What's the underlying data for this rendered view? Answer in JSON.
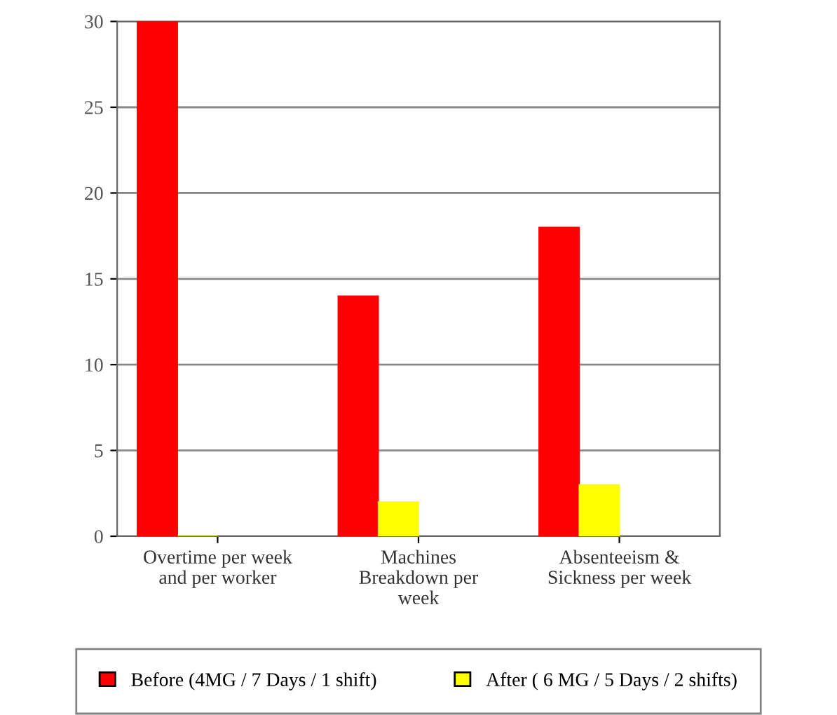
{
  "chart_data": {
    "type": "bar",
    "categories": [
      "Overtime per week\nand per worker",
      "Machines\nBreakdown per\nweek",
      "Absenteeism &\nSickness per week"
    ],
    "series": [
      {
        "name": "Before (4MG / 7 Days / 1 shift)",
        "color": "#ff0000",
        "values": [
          30,
          14,
          18
        ]
      },
      {
        "name": "After ( 6 MG / 5 Days / 2 shifts)",
        "color": "#ffff00",
        "values": [
          0,
          2,
          3
        ]
      }
    ],
    "ylim": [
      0,
      30
    ],
    "yticks": [
      0,
      5,
      10,
      15,
      20,
      25,
      30
    ],
    "grid": "y",
    "legend": "bottom"
  }
}
